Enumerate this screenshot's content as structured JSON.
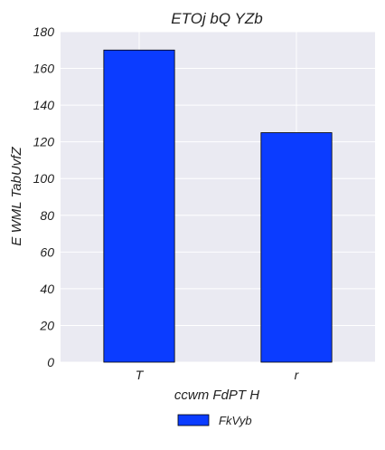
{
  "chart_data": {
    "type": "bar",
    "title": "ETOj   bQ  YZb",
    "xlabel": "ccwm FdPT H",
    "ylabel": "E WML TabUvfZ",
    "categories": [
      "T",
      "r"
    ],
    "series": [
      {
        "name": "FkVyb",
        "values": [
          170,
          125
        ],
        "color": "#0b3cff"
      }
    ],
    "ylim": [
      0,
      180
    ],
    "yticks": [
      0,
      20,
      40,
      60,
      80,
      100,
      120,
      140,
      160,
      180
    ],
    "ytick_labels": [
      "0",
      "20",
      "40",
      "60",
      "80",
      "100",
      "120",
      "140",
      "160",
      "180"
    ],
    "grid": true,
    "legend_position": "bottom-center",
    "background_color": "#eaeaf2",
    "grid_color": "#ffffff",
    "bar_edge_color": "#000000"
  }
}
